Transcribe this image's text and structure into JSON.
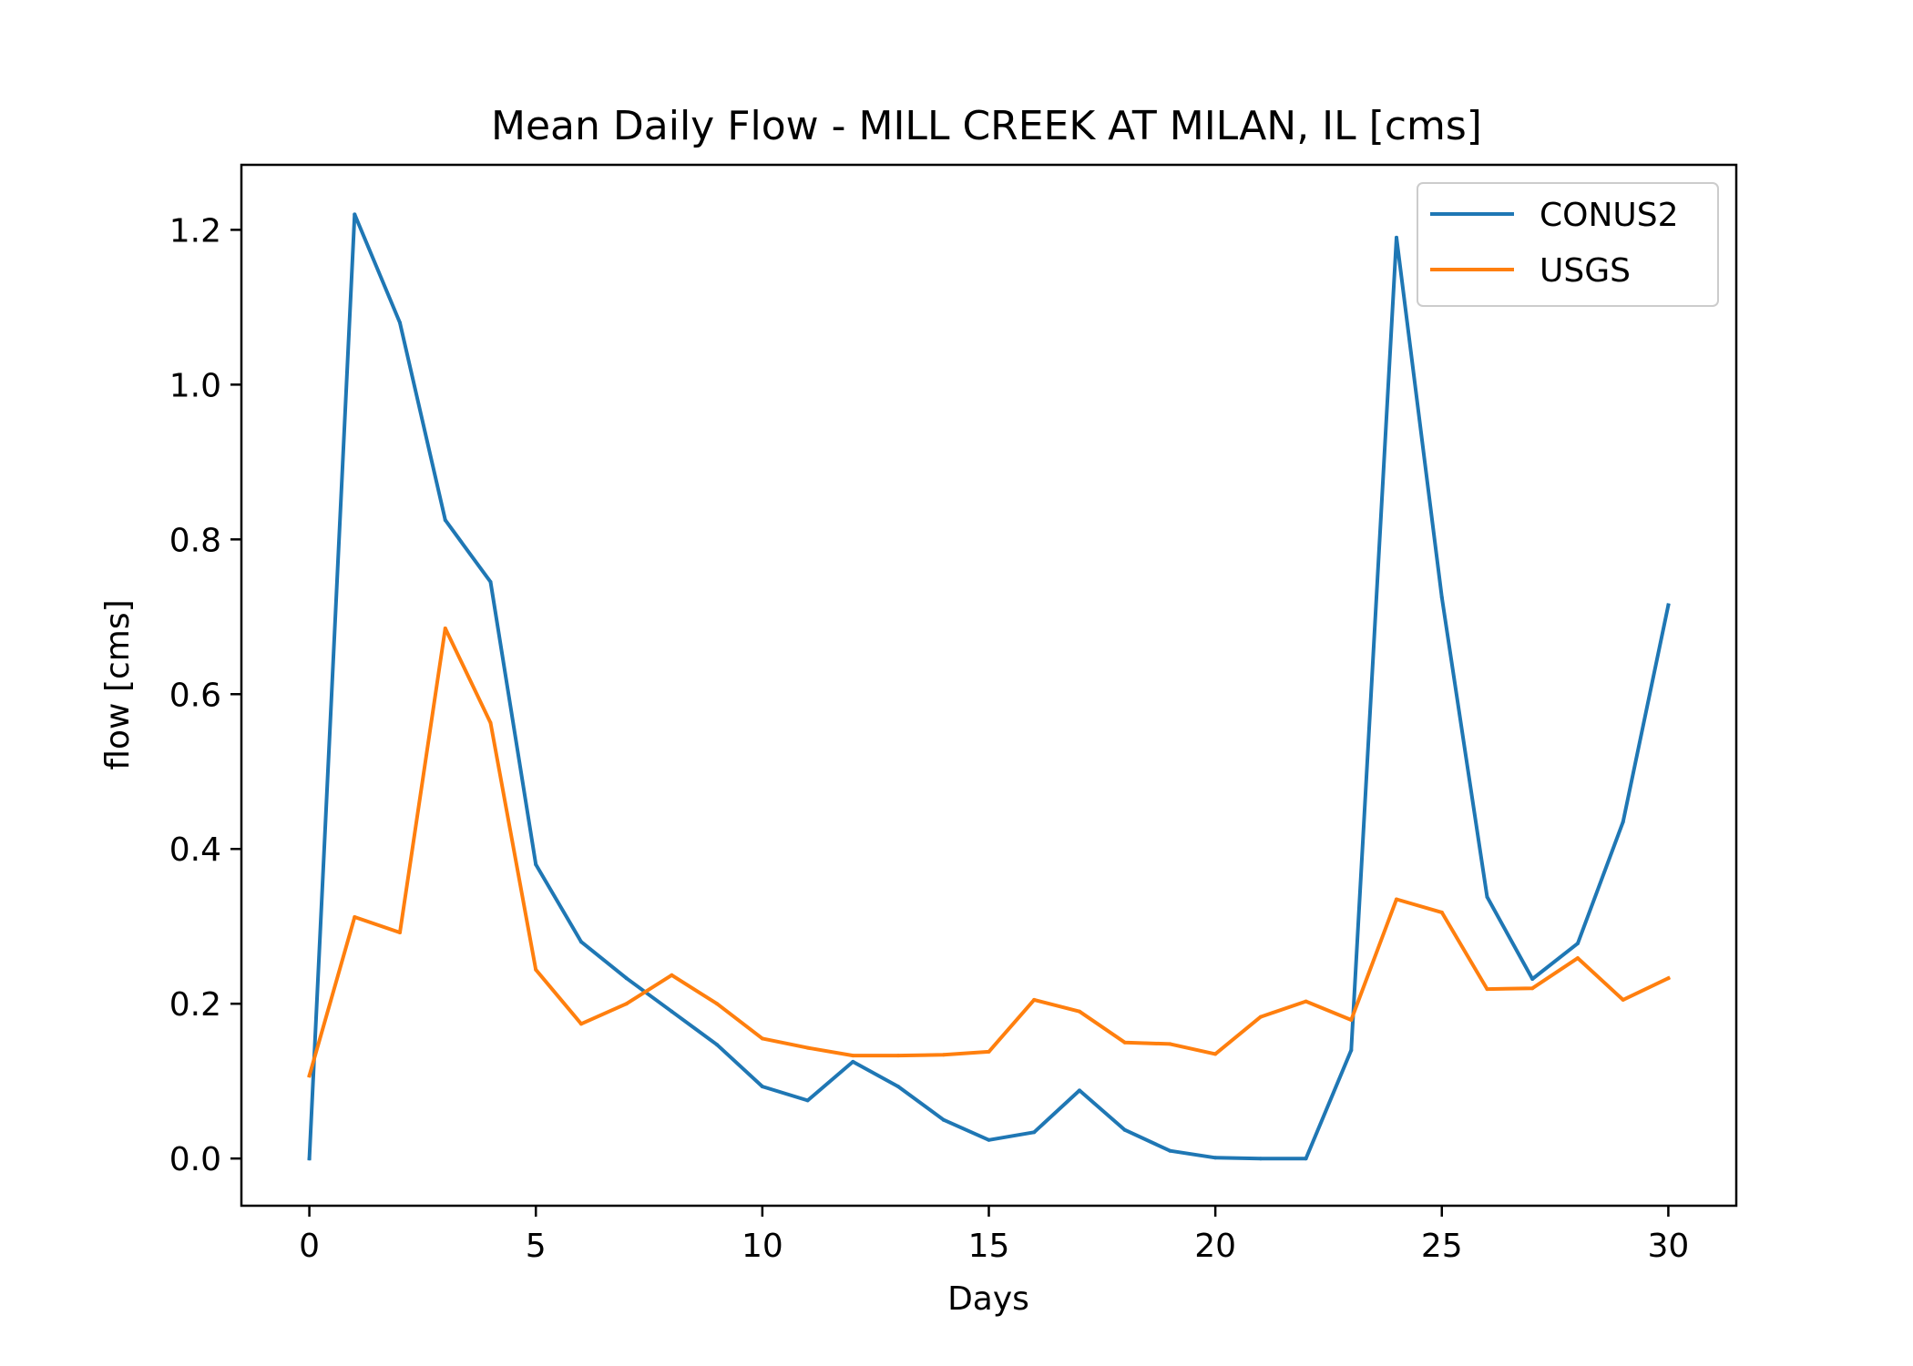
{
  "chart_data": {
    "type": "line",
    "title": "Mean Daily Flow - MILL CREEK AT MILAN, IL [cms]",
    "xlabel": "Days",
    "ylabel": "flow [cms]",
    "xlim": [
      -1.5,
      31.5
    ],
    "ylim": [
      -0.061,
      1.284
    ],
    "xticks": [
      0,
      5,
      10,
      15,
      20,
      25,
      30
    ],
    "xtick_labels": [
      "0",
      "5",
      "10",
      "15",
      "20",
      "25",
      "30"
    ],
    "yticks": [
      0.0,
      0.2,
      0.4,
      0.6,
      0.8,
      1.0,
      1.2
    ],
    "ytick_labels": [
      "0.0",
      "0.2",
      "0.4",
      "0.6",
      "0.8",
      "1.0",
      "1.2"
    ],
    "grid": false,
    "legend_position": "top-right",
    "x": [
      0,
      1,
      2,
      3,
      4,
      5,
      6,
      7,
      8,
      9,
      10,
      11,
      12,
      13,
      14,
      15,
      16,
      17,
      18,
      19,
      20,
      21,
      22,
      23,
      24,
      25,
      26,
      27,
      28,
      29,
      30
    ],
    "series": [
      {
        "name": "CONUS2",
        "color": "#1f77b4",
        "values": [
          0.0,
          1.22,
          1.08,
          0.825,
          0.745,
          0.38,
          0.28,
          0.233,
          0.19,
          0.147,
          0.093,
          0.075,
          0.125,
          0.093,
          0.05,
          0.024,
          0.034,
          0.088,
          0.037,
          0.01,
          0.001,
          0.0,
          0.0,
          0.14,
          1.19,
          0.725,
          0.338,
          0.232,
          0.278,
          0.435,
          0.715
        ]
      },
      {
        "name": "USGS",
        "color": "#ff7f0e",
        "values": [
          0.107,
          0.312,
          0.292,
          0.685,
          0.563,
          0.244,
          0.174,
          0.2,
          0.237,
          0.2,
          0.155,
          0.143,
          0.133,
          0.133,
          0.134,
          0.138,
          0.205,
          0.19,
          0.15,
          0.148,
          0.135,
          0.183,
          0.203,
          0.179,
          0.335,
          0.318,
          0.219,
          0.22,
          0.259,
          0.205,
          0.233
        ]
      }
    ]
  }
}
